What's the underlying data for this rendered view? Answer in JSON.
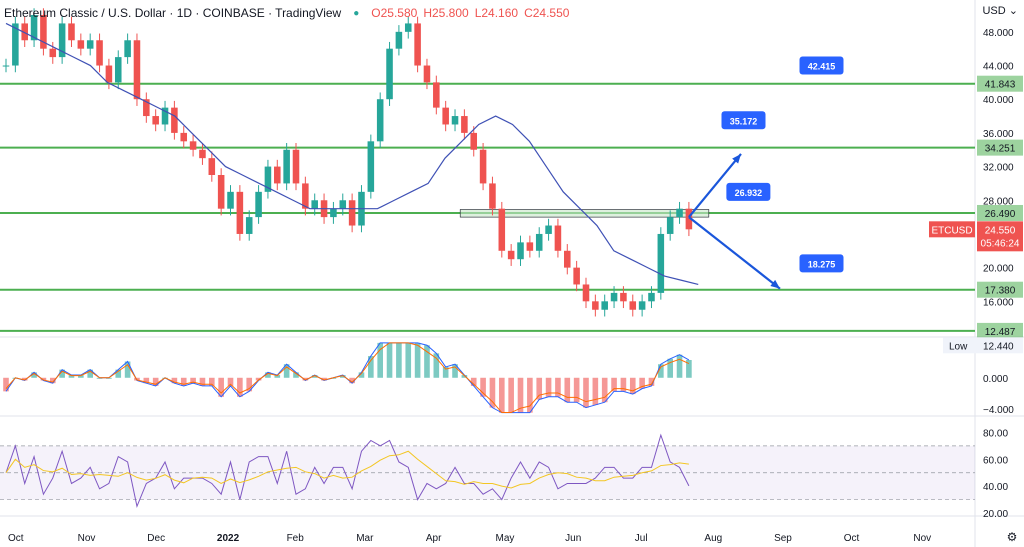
{
  "header": {
    "title": "Ethereum Classic / U.S. Dollar · 1D · COINBASE · TradingView",
    "ohlc": {
      "o": "O25.580",
      "h": "H25.800",
      "l": "L24.160",
      "c": "C24.550"
    }
  },
  "currency_menu": "USD",
  "colors": {
    "up": "#26a69a",
    "down": "#ef5350",
    "ma": "#3f51b5",
    "level": "#4caf50",
    "arrow": "#1a56db",
    "rsi": "#7e57c2",
    "signal": "#f3c623"
  },
  "price_badge": {
    "symbol": "ETCUSD",
    "price": "24.550",
    "countdown": "05:46:24"
  },
  "low_label": {
    "label": "Low",
    "value": "12.440"
  },
  "chart_data": {
    "type": "line",
    "title": "Ethereum Classic / U.S. Dollar · 1D · COINBASE · TradingView",
    "x_ticks": [
      "Oct",
      "Nov",
      "Dec",
      "2022",
      "Feb",
      "Mar",
      "Apr",
      "May",
      "Jun",
      "Jul",
      "Aug",
      "Sep",
      "Oct",
      "Nov"
    ],
    "price_axis": {
      "ticks": [
        "48.000",
        "44.000",
        "40.000",
        "36.000",
        "32.000",
        "28.000",
        "24.000",
        "20.000",
        "16.000"
      ],
      "ylim": [
        12,
        50
      ]
    },
    "levels": [
      "41.843",
      "34.251",
      "26.490",
      "17.380",
      "12.487"
    ],
    "targets": [
      "42.415",
      "35.172",
      "26.932",
      "18.275"
    ],
    "series": [
      {
        "name": "",
        "type": "candles-close",
        "values": [
          44,
          49,
          47,
          50,
          46,
          45,
          49,
          47,
          46,
          47,
          44,
          42,
          45,
          47,
          40,
          38,
          37,
          39,
          36,
          35,
          34,
          33,
          31,
          27,
          29,
          24,
          26,
          29,
          32,
          30,
          34,
          30,
          27,
          28,
          26,
          27,
          28,
          25,
          29,
          35,
          40,
          46,
          48,
          49,
          44,
          42,
          39,
          37,
          38,
          36,
          34,
          30,
          27,
          22,
          21,
          23,
          22,
          24,
          25,
          22,
          20,
          18,
          16,
          15,
          16,
          17,
          16,
          15,
          16,
          17,
          24,
          26,
          27,
          24.55
        ]
      },
      {
        "name": "",
        "type": "moving-average",
        "values": [
          49,
          48,
          47,
          46,
          45,
          44,
          42,
          41,
          40,
          39,
          38,
          36,
          34,
          32,
          31,
          30,
          29,
          28,
          27,
          27,
          27,
          27,
          27,
          28,
          29,
          30,
          33,
          35,
          37,
          38,
          37,
          35,
          32,
          29,
          27,
          25,
          22,
          21,
          20,
          19,
          18.5,
          18
        ]
      }
    ],
    "macd": {
      "ticks": [
        "4.000",
        "0.000",
        "−4.000"
      ],
      "ylim": [
        -4.8,
        5
      ]
    },
    "rsi": {
      "ticks": [
        "80.00",
        "60.00",
        "40.00",
        "20.00"
      ],
      "ylim": [
        20,
        90
      ],
      "band": [
        30,
        70
      ]
    }
  }
}
